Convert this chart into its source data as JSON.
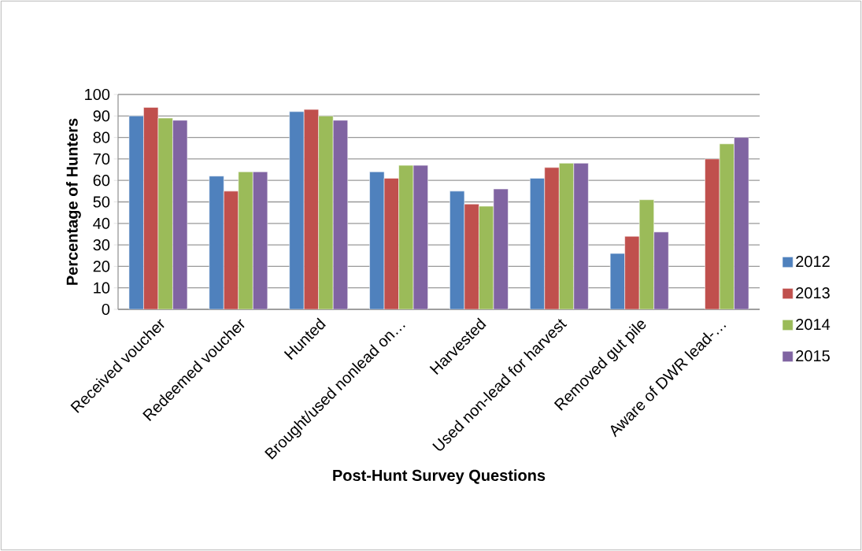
{
  "chart_data": {
    "type": "bar",
    "xlabel": "Post-Hunt Survey Questions",
    "ylabel": "Percentage of Hunters",
    "categories": [
      "Received voucher",
      "Redeemed voucher",
      "Hunted",
      "Brought/used nonlead on…",
      "Harvested",
      "Used non-lead for harvest",
      "Removed gut pile",
      "Aware of DWR lead-…"
    ],
    "series": [
      {
        "name": "2012",
        "color": "#4f81bd",
        "values": [
          90,
          62,
          92,
          64,
          55,
          61,
          26,
          null
        ]
      },
      {
        "name": "2013",
        "color": "#c0504d",
        "values": [
          94,
          55,
          93,
          61,
          49,
          66,
          34,
          70
        ]
      },
      {
        "name": "2014",
        "color": "#9bbb59",
        "values": [
          89,
          64,
          90,
          67,
          48,
          68,
          51,
          77
        ]
      },
      {
        "name": "2015",
        "color": "#8064a2",
        "values": [
          88,
          64,
          88,
          67,
          56,
          68,
          36,
          80
        ]
      }
    ],
    "ylim": [
      0,
      100
    ],
    "yticks": [
      0,
      10,
      20,
      30,
      40,
      50,
      60,
      70,
      80,
      90,
      100
    ],
    "grid": "y",
    "legend": "right"
  }
}
